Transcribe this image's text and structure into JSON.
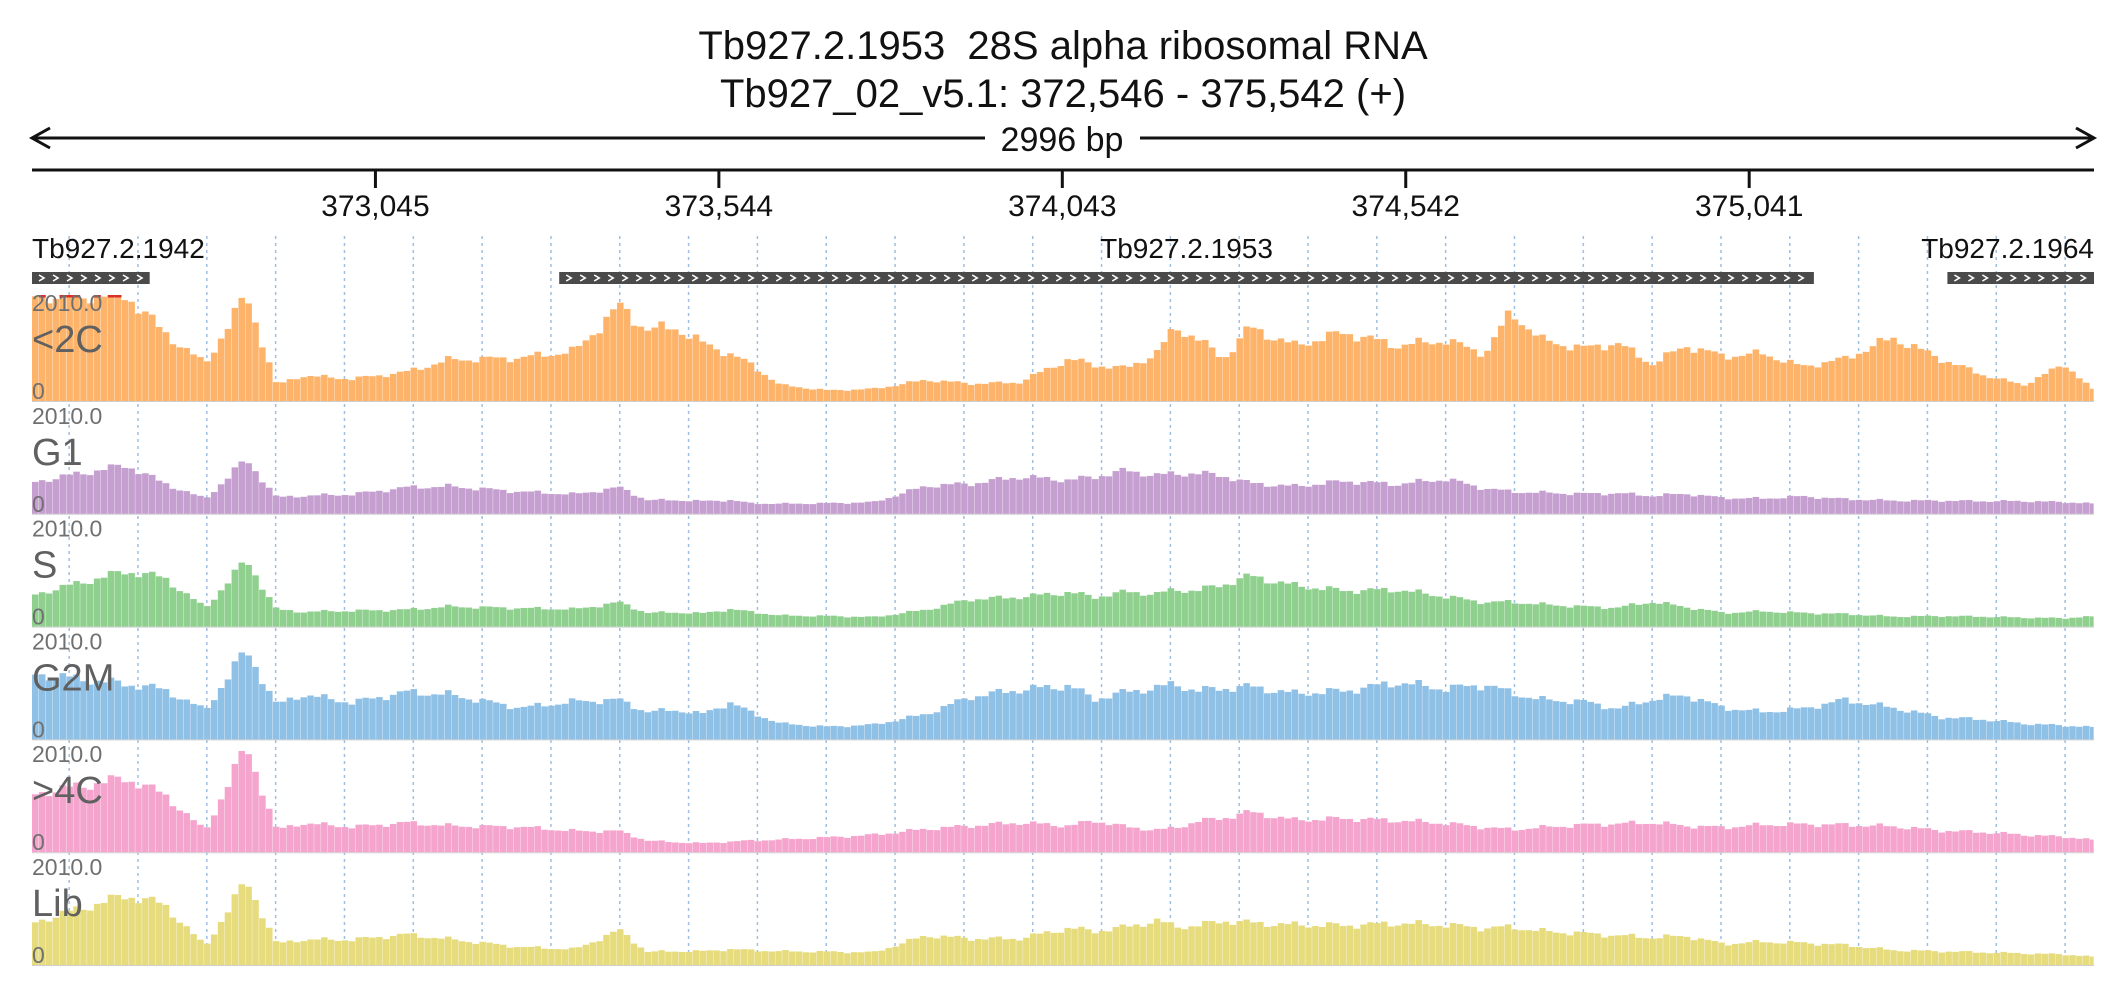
{
  "header": {
    "title": "Tb927.2.1953  28S alpha ribosomal RNA",
    "subtitle": "Tb927_02_v5.1: 372,546 - 375,542 (+)",
    "span_label": "2996 bp"
  },
  "chart_data": {
    "type": "bar",
    "region": {
      "chrom": "Tb927_02_v5.1",
      "start": 372546,
      "end": 375542,
      "strand": "+"
    },
    "ticks": [
      {
        "pos": 373045,
        "label": "373,045"
      },
      {
        "pos": 373544,
        "label": "373,544"
      },
      {
        "pos": 374043,
        "label": "374,043"
      },
      {
        "pos": 374542,
        "label": "374,542"
      },
      {
        "pos": 375041,
        "label": "375,041"
      }
    ],
    "genes": [
      {
        "name": "Tb927.2.1942",
        "start": 372546,
        "end": 372717,
        "strand": "+",
        "label_align": "start"
      },
      {
        "name": "Tb927.2.1953",
        "start": 373312,
        "end": 375135,
        "strand": "+",
        "label_align": "center"
      },
      {
        "name": "Tb927.2.1964",
        "start": 375329,
        "end": 375542,
        "strand": "+",
        "label_align": "end"
      }
    ],
    "bin_size_bp": 10,
    "ylim": [
      0,
      2010.0
    ],
    "y_max_label": "2010.0",
    "y_min_label": "0",
    "colors": {
      "clip": "#d73027"
    },
    "anchor_x": [
      372546,
      372684,
      372738,
      372798,
      372858,
      372902,
      372938,
      373012,
      373090,
      373152,
      373256,
      373336,
      373400,
      373440,
      373480,
      373520,
      373560,
      373590,
      373634,
      373704,
      373770,
      373846,
      373910,
      373980,
      374054,
      374090,
      374136,
      374180,
      374208,
      374238,
      374278,
      374316,
      374380,
      374454,
      374530,
      374600,
      374658,
      374696,
      374740,
      374800,
      374850,
      374900,
      374950,
      375004,
      375062,
      375118,
      375180,
      375250,
      375320,
      375380,
      375440,
      375500,
      375542
    ],
    "series": [
      {
        "name": "<2C",
        "color": "#fdb46a",
        "values": [
          2010,
          2010,
          1300,
          700,
          2010,
          300,
          480,
          420,
          550,
          780,
          820,
          950,
          1800,
          1350,
          1400,
          1100,
          900,
          700,
          300,
          200,
          230,
          400,
          330,
          350,
          800,
          680,
          620,
          900,
          1400,
          1200,
          800,
          1400,
          1050,
          1300,
          1050,
          1150,
          900,
          1700,
          1150,
          1000,
          1100,
          700,
          1050,
          850,
          900,
          650,
          800,
          1200,
          800,
          500,
          300,
          700,
          200
        ]
      },
      {
        "name": "G1",
        "color": "#c59fd0",
        "values": [
          600,
          920,
          580,
          280,
          1030,
          310,
          340,
          370,
          500,
          520,
          420,
          370,
          500,
          260,
          260,
          240,
          260,
          200,
          190,
          200,
          220,
          530,
          570,
          700,
          640,
          700,
          820,
          730,
          760,
          770,
          720,
          580,
          520,
          620,
          560,
          660,
          480,
          420,
          400,
          380,
          390,
          340,
          380,
          300,
          290,
          330,
          280,
          250,
          250,
          240,
          240,
          220,
          200
        ]
      },
      {
        "name": "S",
        "color": "#8fd08f",
        "values": [
          600,
          1050,
          930,
          350,
          1260,
          320,
          280,
          300,
          320,
          380,
          350,
          330,
          460,
          260,
          270,
          250,
          330,
          280,
          210,
          200,
          180,
          320,
          520,
          560,
          650,
          560,
          660,
          620,
          700,
          680,
          800,
          960,
          780,
          680,
          700,
          570,
          460,
          470,
          420,
          380,
          360,
          470,
          370,
          260,
          290,
          260,
          240,
          190,
          200,
          190,
          170,
          160,
          200
        ]
      },
      {
        "name": "G2M",
        "color": "#8fc0e6",
        "values": [
          1250,
          1050,
          950,
          550,
          1700,
          650,
          850,
          700,
          900,
          850,
          600,
          720,
          750,
          520,
          560,
          480,
          700,
          520,
          300,
          240,
          280,
          480,
          810,
          940,
          1020,
          760,
          900,
          980,
          1050,
          920,
          970,
          1000,
          870,
          920,
          1080,
          960,
          1040,
          880,
          750,
          720,
          580,
          760,
          840,
          600,
          520,
          580,
          750,
          600,
          420,
          380,
          300,
          260,
          240
        ]
      },
      {
        "name": ">4C",
        "color": "#f4a4cd",
        "values": [
          1100,
          1400,
          1100,
          400,
          2010,
          420,
          550,
          480,
          560,
          500,
          480,
          400,
          400,
          220,
          190,
          170,
          200,
          220,
          240,
          280,
          330,
          440,
          500,
          560,
          500,
          600,
          480,
          420,
          460,
          580,
          650,
          760,
          610,
          640,
          600,
          550,
          470,
          430,
          470,
          520,
          540,
          560,
          500,
          470,
          520,
          530,
          520,
          490,
          410,
          380,
          330,
          290,
          240
        ]
      },
      {
        "name": "Lib",
        "color": "#e6dc7e",
        "values": [
          800,
          1320,
          1150,
          350,
          1600,
          400,
          480,
          480,
          580,
          490,
          340,
          300,
          660,
          250,
          260,
          260,
          300,
          280,
          260,
          250,
          240,
          560,
          500,
          500,
          700,
          640,
          720,
          840,
          730,
          740,
          840,
          800,
          760,
          750,
          790,
          760,
          700,
          720,
          640,
          600,
          560,
          520,
          550,
          400,
          440,
          420,
          380,
          280,
          260,
          240,
          220,
          200,
          160
        ]
      }
    ]
  }
}
